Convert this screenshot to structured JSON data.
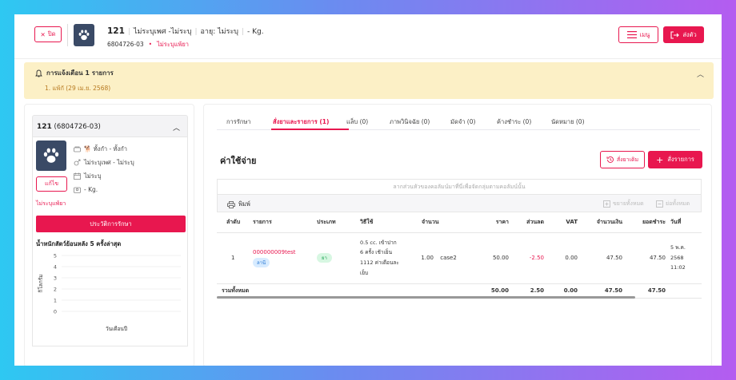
{
  "header": {
    "close_label": "ปิด",
    "pet_name": "121",
    "sex": "ไม่ระบุเพศ -ไม่ระบุ",
    "age": "อายุ: ไม่ระบุ",
    "weight": "- Kg.",
    "hn": "6804726-03",
    "allergy": "ไม่ระบุแพ้ยา",
    "menu_label": "เมนู",
    "send_label": "ส่งตัว"
  },
  "alert": {
    "title": "การแจ้งเตือน 1 รายการ",
    "items": [
      "1. แพ้กั (29 เม.ย. 2568)"
    ]
  },
  "pet_panel": {
    "title_name": "121",
    "title_hn": "(6804726-03)",
    "rows": [
      {
        "icon": "pet-icon",
        "text": "🐕 ทั้งกำ - ทั้งกำ"
      },
      {
        "icon": "gender-icon",
        "text": "ไม่ระบุเพศ - ไม่ระบุ"
      },
      {
        "icon": "calendar-icon",
        "text": "ไม่ระบุ"
      },
      {
        "icon": "weight-icon",
        "text": "- Kg."
      }
    ],
    "edit_label": "แก้ไข",
    "allergy": "ไม่ระบุแพ้ยา",
    "history_label": "ประวัติการรักษา",
    "chart_title": "น้ำหนักสัตว์ย้อนหลัง 5 ครั้งล่าสุด"
  },
  "chart_data": {
    "type": "line",
    "title": "น้ำหนักสัตว์ย้อนหลัง 5 ครั้งล่าสุด",
    "xlabel": "วันเดือนปี",
    "ylabel": "กิโลกรัม",
    "ylim": [
      0,
      5
    ],
    "yticks": [
      0,
      1,
      2,
      3,
      4,
      5
    ],
    "x": [],
    "series": []
  },
  "tabs": [
    {
      "label": "การรักษา",
      "active": false
    },
    {
      "label": "สั่งยาและรายการ (1)",
      "active": true
    },
    {
      "label": "แล็บ (0)",
      "active": false
    },
    {
      "label": "ภาพวินิจฉัย (0)",
      "active": false
    },
    {
      "label": "มัดจำ (0)",
      "active": false
    },
    {
      "label": "ค้างชำระ (0)",
      "active": false
    },
    {
      "label": "นัดหมาย (0)",
      "active": false
    }
  ],
  "main": {
    "title": "ค่าใช้จ่าย",
    "order_label": "สั่งยาเดิม",
    "add_label": "สั่งรายการ",
    "group_hint": "ลากส่วนหัวของคอลัมน์มาที่นี่เพื่อจัดกลุ่มตามคอลัมน์นั้น",
    "print_label": "พิมพ์",
    "expand_label": "ขยายทั้งหมด",
    "collapse_label": "ย่อทั้งหมด"
  },
  "table": {
    "headers": [
      "ลำดับ",
      "รายการ",
      "ประเภท",
      "วิธีใช้",
      "จำนวน",
      "ราคา",
      "ส่วนลด",
      "VAT",
      "จำนวนเงิน",
      "ยอดชำระ",
      "วันที่"
    ],
    "rows": [
      {
        "no": "1",
        "item": "000000009test",
        "item_tag": "ลานี",
        "type": "ยา",
        "usage": [
          "0.5 cc. เข้าปาก",
          "6 ครั้ง เช้าเย็น",
          "1112 ค่าเดือนละ",
          "เย็บ"
        ],
        "qty": "1.00",
        "unit": "case2",
        "price": "50.00",
        "discount": "-2.50",
        "vat": "0.00",
        "amount": "47.50",
        "paid": "47.50",
        "date": [
          "5 พ.ค. 2568",
          "11:02"
        ]
      }
    ],
    "total": {
      "label": "รวมทั้งหมด",
      "price": "50.00",
      "discount": "2.50",
      "vat": "0.00",
      "amount": "47.50",
      "paid": "47.50"
    }
  },
  "colors": {
    "accent": "#e8174f",
    "alert_bg": "#fcf0c6",
    "avatar_bg": "#3a4a66"
  }
}
